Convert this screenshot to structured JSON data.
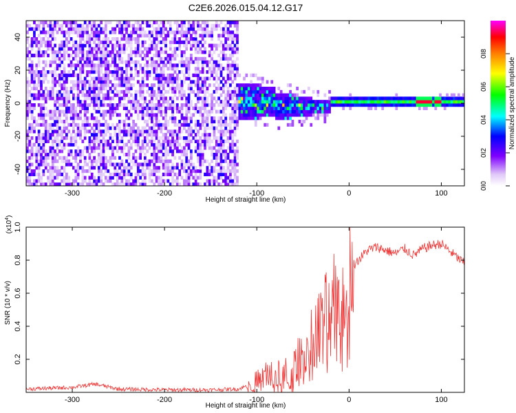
{
  "title": "C2E6.2026.015.04.12.G17",
  "chart_data": [
    {
      "type": "heatmap",
      "name": "spectrogram",
      "xlabel": "Height of straight line (km)",
      "ylabel": "Frequency (Hz)",
      "xlim": [
        -350,
        125
      ],
      "ylim": [
        -50,
        50
      ],
      "xticks": [
        -300,
        -200,
        -100,
        0,
        100
      ],
      "yticks": [
        -40,
        -20,
        0,
        20,
        40
      ],
      "colorbar": {
        "label": "Normalized spectral amplitude",
        "range": [
          0,
          1
        ],
        "ticks": [
          0,
          0.2,
          0.4,
          0.6,
          0.8
        ],
        "tick_labels": [
          "0.0",
          "0.2",
          "0.4",
          "0.6",
          "0.8"
        ],
        "colors": [
          "#ffffff",
          "#e0c8f8",
          "#7f00ff",
          "#0000ff",
          "#00ffff",
          "#00ff00",
          "#ffff00",
          "#ff8000",
          "#ff0000",
          "#ff00ff"
        ]
      },
      "regions": [
        {
          "x": [
            -350,
            -120
          ],
          "freq": [
            -50,
            50
          ],
          "amplitude": "low (0.05-0.3), broadband noise"
        },
        {
          "x": [
            -150,
            -20
          ],
          "freq": [
            -15,
            10
          ],
          "amplitude": "0.2-0.6, narrowing ridge"
        },
        {
          "x": [
            -20,
            125
          ],
          "freq": [
            -2,
            2
          ],
          "amplitude": "0.5-1.0, narrow tone near 0 Hz, peaks near 80 and 95 km"
        }
      ]
    },
    {
      "type": "line",
      "name": "snr",
      "xlabel": "Height of straight line (km)",
      "ylabel": "SNR (10 * v/v)",
      "multiplier": "(x10",
      "multiplier_exp": "4",
      "xlim": [
        -350,
        125
      ],
      "ylim": [
        0,
        1.0
      ],
      "xticks": [
        -300,
        -200,
        -100,
        0,
        100
      ],
      "yticks": [
        0.2,
        0.4,
        0.6,
        0.8,
        1.0
      ],
      "color": "#ee3333",
      "x": [
        -350,
        -300,
        -275,
        -250,
        -200,
        -150,
        -120,
        -100,
        -90,
        -80,
        -70,
        -60,
        -50,
        -40,
        -30,
        -20,
        -15,
        -10,
        -5,
        0,
        10,
        20,
        30,
        40,
        50,
        60,
        70,
        80,
        90,
        100,
        110,
        125
      ],
      "y": [
        0.02,
        0.03,
        0.05,
        0.02,
        0.015,
        0.015,
        0.02,
        0.06,
        0.12,
        0.08,
        0.07,
        0.12,
        0.22,
        0.35,
        0.45,
        0.55,
        0.7,
        0.55,
        0.62,
        0.75,
        0.8,
        0.86,
        0.88,
        0.86,
        0.84,
        0.87,
        0.83,
        0.87,
        0.89,
        0.9,
        0.85,
        0.78
      ]
    }
  ]
}
